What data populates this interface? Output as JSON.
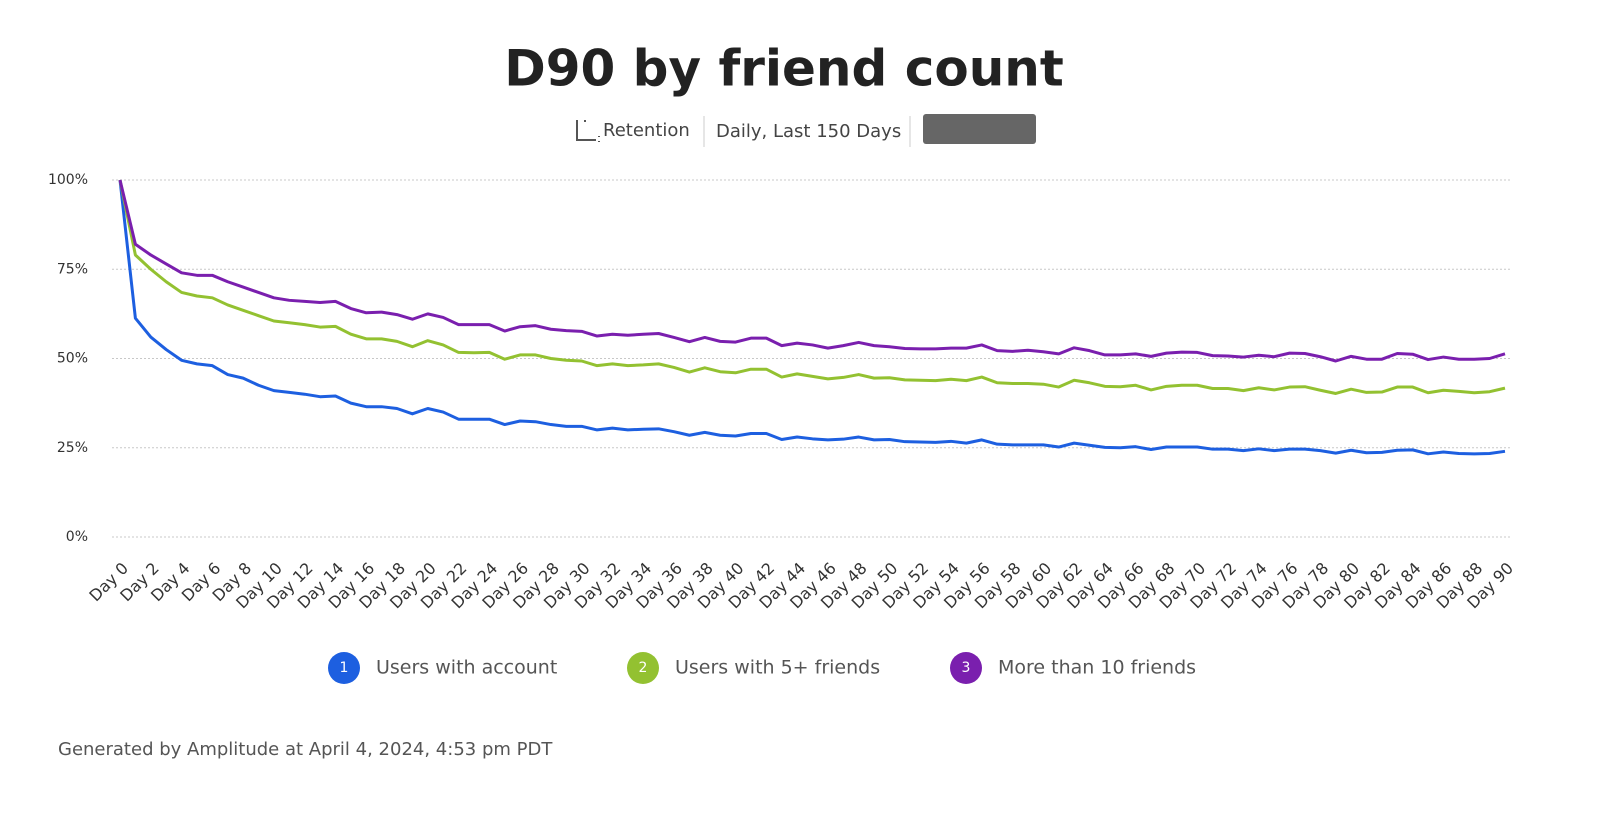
{
  "chart_data": {
    "type": "line",
    "title": "D90 by friend count",
    "metric": "Retention",
    "subtitle": "Daily, Last 150 Days",
    "footer": "Generated by Amplitude at April 4, 2024, 4:53 pm PDT",
    "categories": [
      "Day 0",
      null,
      "Day 2",
      null,
      "Day 4",
      null,
      "Day 6",
      null,
      "Day 8",
      null,
      "Day 10",
      null,
      "Day 12",
      null,
      "Day 14",
      null,
      "Day 16",
      null,
      "Day 18",
      null,
      "Day 20",
      null,
      "Day 22",
      null,
      "Day 24",
      null,
      "Day 26",
      null,
      "Day 28",
      null,
      "Day 30",
      null,
      "Day 32",
      null,
      "Day 34",
      null,
      "Day 36",
      null,
      "Day 38",
      null,
      "Day 40",
      null,
      "Day 42",
      null,
      "Day 44",
      null,
      "Day 46",
      null,
      "Day 48",
      null,
      "Day 50",
      null,
      "Day 52",
      null,
      "Day 54",
      null,
      "Day 56",
      null,
      "Day 58",
      null,
      "Day 60",
      null,
      "Day 62",
      null,
      "Day 64",
      null,
      "Day 66",
      null,
      "Day 68",
      null,
      "Day 70",
      null,
      "Day 72",
      null,
      "Day 74",
      null,
      "Day 76",
      null,
      "Day 78",
      null,
      "Day 80",
      null,
      "Day 82",
      null,
      "Day 84",
      null,
      "Day 86",
      null,
      "Day 88",
      null,
      "Day 90"
    ],
    "series": [
      {
        "name": "Users with account",
        "number": "1",
        "color": "#1d5fe0",
        "values": [
          100,
          61.3,
          56,
          52.5,
          49.5,
          48.5,
          48,
          45.5,
          44.5,
          42.5,
          41,
          40.5,
          40,
          39.3,
          39.5,
          37.5,
          36.5,
          36.5,
          36,
          34.5,
          36,
          35,
          33,
          33,
          33,
          31.5,
          32.5,
          32.3,
          31.5,
          31,
          31,
          30,
          30.5,
          30,
          30.2,
          30.3,
          29.5,
          28.5,
          29.3,
          28.5,
          28.3,
          29,
          29,
          27.3,
          28,
          27.5,
          27.2,
          27.4,
          28,
          27.2,
          27.3,
          26.7,
          26.6,
          26.5,
          26.8,
          26.3,
          27.2,
          26,
          25.8,
          25.8,
          25.8,
          25.2,
          26.3,
          25.7,
          25.1,
          25,
          25.3,
          24.5,
          25.2,
          25.2,
          25.2,
          24.6,
          24.6,
          24.2,
          24.7,
          24.2,
          24.6,
          24.6,
          24.2,
          23.5,
          24.3,
          23.6,
          23.7,
          24.3,
          24.4,
          23.3,
          23.8,
          23.4,
          23.3,
          23.4,
          24
        ]
      },
      {
        "name": "Users with 5+ friends",
        "number": "2",
        "color": "#93c131",
        "values": [
          100,
          79,
          75,
          71.5,
          68.5,
          67.5,
          67,
          65,
          63.5,
          62,
          60.5,
          60,
          59.5,
          58.8,
          59,
          56.8,
          55.5,
          55.5,
          54.8,
          53.3,
          55,
          53.8,
          51.7,
          51.6,
          51.7,
          49.8,
          51,
          51,
          50,
          49.5,
          49.3,
          48,
          48.5,
          48,
          48.2,
          48.5,
          47.5,
          46.2,
          47.4,
          46.3,
          46,
          47,
          47,
          44.8,
          45.7,
          45,
          44.3,
          44.7,
          45.5,
          44.5,
          44.6,
          44,
          43.9,
          43.8,
          44.2,
          43.8,
          44.8,
          43.2,
          43,
          43,
          42.8,
          42,
          43.9,
          43.2,
          42.2,
          42.1,
          42.5,
          41.2,
          42.2,
          42.5,
          42.5,
          41.6,
          41.6,
          41,
          41.8,
          41.2,
          42,
          42.1,
          41.1,
          40.2,
          41.4,
          40.5,
          40.6,
          42,
          42,
          40.4,
          41.1,
          40.8,
          40.4,
          40.7,
          41.7
        ]
      },
      {
        "name": "More than 10 friends",
        "number": "3",
        "color": "#7a1fae",
        "values": [
          100,
          82,
          79,
          76.5,
          74,
          73.3,
          73.3,
          71.5,
          70,
          68.5,
          67,
          66.3,
          66,
          65.7,
          66,
          64,
          62.8,
          63,
          62.3,
          61,
          62.5,
          61.5,
          59.5,
          59.5,
          59.5,
          57.7,
          58.9,
          59.2,
          58.2,
          57.8,
          57.6,
          56.3,
          56.8,
          56.5,
          56.8,
          57,
          55.9,
          54.7,
          55.9,
          54.8,
          54.6,
          55.7,
          55.7,
          53.6,
          54.3,
          53.8,
          52.9,
          53.6,
          54.5,
          53.6,
          53.3,
          52.8,
          52.7,
          52.7,
          52.9,
          52.9,
          53.8,
          52.2,
          52,
          52.3,
          51.9,
          51.3,
          53,
          52.2,
          51,
          51,
          51.3,
          50.6,
          51.5,
          51.8,
          51.7,
          50.8,
          50.7,
          50.4,
          50.9,
          50.5,
          51.5,
          51.4,
          50.5,
          49.3,
          50.6,
          49.8,
          49.8,
          51.4,
          51.2,
          49.7,
          50.4,
          49.8,
          49.8,
          50,
          51.3
        ]
      }
    ],
    "ylim": [
      0,
      100
    ],
    "yticks": [
      {
        "value": 0,
        "label": "0%"
      },
      {
        "value": 25,
        "label": "25%"
      },
      {
        "value": 50,
        "label": "50%"
      },
      {
        "value": 75,
        "label": "75%"
      },
      {
        "value": 100,
        "label": "100%"
      }
    ],
    "grid": true
  }
}
